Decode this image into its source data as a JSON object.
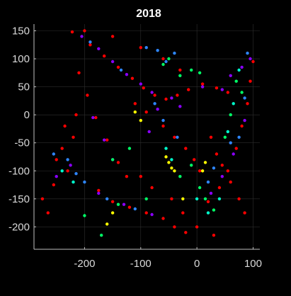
{
  "chart_data": {
    "type": "scatter",
    "title": "2018",
    "xlabel": "",
    "ylabel": "",
    "xlim": [
      -290,
      112
    ],
    "ylim": [
      -240,
      162
    ],
    "xticks": [
      -200,
      -100,
      0,
      100
    ],
    "yticks": [
      150,
      100,
      50,
      0,
      -50,
      -100,
      -150,
      -200
    ],
    "xtick_labels": [
      "-200",
      "-100",
      "0",
      "100"
    ],
    "ytick_labels": [
      "150",
      "100",
      "50",
      "0",
      "-50",
      "-100",
      "-150",
      "-200"
    ],
    "grid": true,
    "background": "#000000",
    "series": [
      {
        "color": "#ff0000",
        "values": [
          [
            -222,
            148
          ],
          [
            -190,
            125
          ],
          [
            -165,
            105
          ],
          [
            -140,
            85
          ],
          [
            -115,
            65
          ],
          [
            -95,
            48
          ],
          [
            -75,
            35
          ],
          [
            -55,
            28
          ],
          [
            -35,
            35
          ],
          [
            -15,
            45
          ],
          [
            10,
            55
          ],
          [
            35,
            48
          ],
          [
            55,
            40
          ],
          [
            -210,
            75
          ],
          [
            -195,
            35
          ],
          [
            -180,
            -5
          ],
          [
            -160,
            -45
          ],
          [
            -140,
            -85
          ],
          [
            -125,
            -110
          ],
          [
            -230,
            -100
          ],
          [
            -255,
            -125
          ],
          [
            -275,
            -150
          ],
          [
            -265,
            -175
          ],
          [
            -175,
            -135
          ],
          [
            -150,
            -155
          ],
          [
            -120,
            -165
          ],
          [
            -90,
            -175
          ],
          [
            -60,
            -185
          ],
          [
            -40,
            -200
          ],
          [
            -20,
            -210
          ],
          [
            20,
            -155
          ],
          [
            40,
            -130
          ],
          [
            55,
            -100
          ],
          [
            70,
            -60
          ],
          [
            80,
            -20
          ],
          [
            90,
            20
          ],
          [
            95,
            60
          ],
          [
            100,
            95
          ],
          [
            25,
            -40
          ],
          [
            35,
            -70
          ],
          [
            45,
            -90
          ],
          [
            60,
            -120
          ],
          [
            75,
            -150
          ],
          [
            85,
            -175
          ],
          [
            -110,
            20
          ],
          [
            -90,
            5
          ],
          [
            -60,
            -20
          ],
          [
            -40,
            -40
          ],
          [
            -20,
            -60
          ],
          [
            -5,
            -80
          ],
          [
            5,
            -100
          ],
          [
            -200,
            150
          ],
          [
            -150,
            140
          ],
          [
            -100,
            120
          ],
          [
            -60,
            100
          ],
          [
            -30,
            80
          ],
          [
            30,
            -215
          ],
          [
            0,
            -200
          ],
          [
            -25,
            -175
          ],
          [
            -45,
            -150
          ],
          [
            -80,
            -130
          ],
          [
            -100,
            -110
          ],
          [
            -250,
            -80
          ],
          [
            -240,
            -60
          ],
          [
            -220,
            -40
          ],
          [
            -235,
            -20
          ],
          [
            -215,
            0
          ]
        ]
      },
      {
        "color": "#8b00ff",
        "values": [
          [
            -205,
            140
          ],
          [
            -175,
            118
          ],
          [
            -150,
            95
          ],
          [
            -125,
            72
          ],
          [
            -100,
            55
          ],
          [
            -80,
            40
          ],
          [
            10,
            50
          ],
          [
            45,
            45
          ],
          [
            60,
            70
          ],
          [
            80,
            85
          ],
          [
            95,
            100
          ],
          [
            -185,
            -5
          ],
          [
            -165,
            -45
          ],
          [
            -150,
            -80
          ],
          [
            -250,
            -110
          ],
          [
            -225,
            -90
          ],
          [
            -175,
            -140
          ],
          [
            -130,
            -160
          ],
          [
            -80,
            -178
          ],
          [
            25,
            -140
          ],
          [
            45,
            -110
          ],
          [
            65,
            -70
          ],
          [
            85,
            -10
          ],
          [
            -45,
            30
          ],
          [
            -30,
            15
          ],
          [
            -70,
            10
          ],
          [
            -85,
            -30
          ]
        ]
      },
      {
        "color": "#2e86ff",
        "values": [
          [
            -190,
            130
          ],
          [
            -135,
            80
          ],
          [
            -90,
            120
          ],
          [
            -70,
            115
          ],
          [
            -55,
            95
          ],
          [
            -40,
            110
          ],
          [
            90,
            110
          ],
          [
            85,
            30
          ],
          [
            75,
            -40
          ],
          [
            -215,
            -105
          ],
          [
            -200,
            -120
          ],
          [
            -160,
            -150
          ],
          [
            -110,
            -168
          ],
          [
            -75,
            20
          ],
          [
            -60,
            -10
          ],
          [
            -35,
            -40
          ],
          [
            30,
            -95
          ],
          [
            20,
            -120
          ],
          [
            60,
            -50
          ],
          [
            -255,
            -70
          ],
          [
            -230,
            -80
          ]
        ]
      },
      {
        "color": "#00ff66",
        "values": [
          [
            -60,
            90
          ],
          [
            -50,
            100
          ],
          [
            -30,
            70
          ],
          [
            -10,
            80
          ],
          [
            5,
            75
          ],
          [
            70,
            60
          ],
          [
            80,
            40
          ],
          [
            60,
            0
          ],
          [
            50,
            -40
          ],
          [
            -150,
            -80
          ],
          [
            -120,
            -60
          ],
          [
            -140,
            -160
          ],
          [
            -170,
            -215
          ],
          [
            -200,
            -180
          ],
          [
            5,
            -130
          ],
          [
            15,
            -150
          ],
          [
            30,
            -170
          ],
          [
            -10,
            -90
          ],
          [
            -30,
            -110
          ],
          [
            -90,
            -150
          ]
        ]
      },
      {
        "color": "#00ffcc",
        "values": [
          [
            75,
            80
          ],
          [
            65,
            20
          ],
          [
            55,
            -30
          ],
          [
            -240,
            -100
          ],
          [
            -220,
            -120
          ],
          [
            0,
            -150
          ],
          [
            20,
            -175
          ],
          [
            40,
            -150
          ],
          [
            -55,
            -60
          ],
          [
            -45,
            -80
          ]
        ]
      },
      {
        "color": "#ffff00",
        "values": [
          [
            -110,
            5
          ],
          [
            -100,
            -10
          ],
          [
            -55,
            -75
          ],
          [
            -50,
            -85
          ],
          [
            -45,
            -95
          ],
          [
            -40,
            -100
          ],
          [
            -150,
            -175
          ],
          [
            -160,
            -195
          ],
          [
            10,
            -100
          ],
          [
            15,
            -85
          ],
          [
            -25,
            -150
          ]
        ]
      }
    ]
  }
}
